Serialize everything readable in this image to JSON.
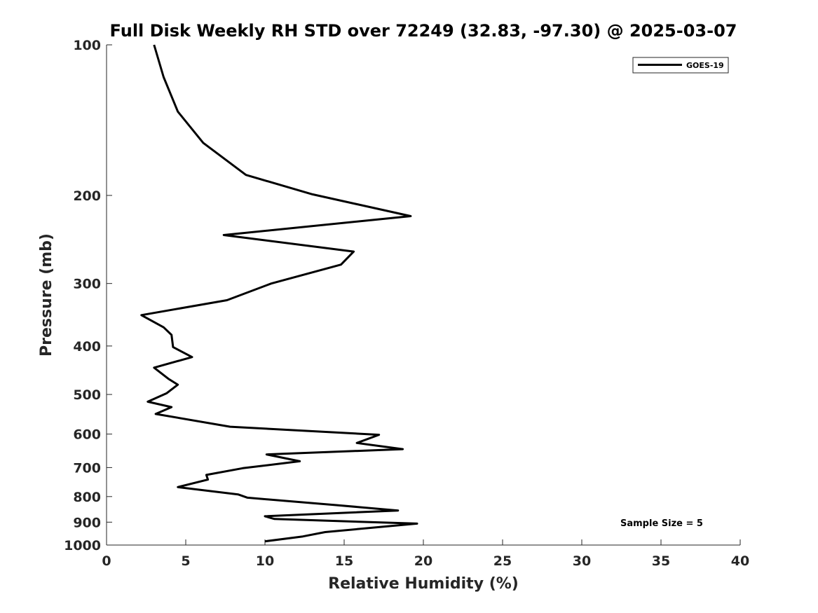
{
  "chart_data": {
    "type": "line",
    "title": "Full Disk Weekly RH STD over 72249 (32.83, -97.30) @ 2025-03-07",
    "xlabel": "Relative Humidity (%)",
    "ylabel": "Pressure (mb)",
    "xlim": [
      0,
      40
    ],
    "ylim": [
      100,
      1000
    ],
    "y_scale": "log",
    "y_reversed": true,
    "xticks": [
      0,
      5,
      10,
      15,
      20,
      25,
      30,
      35,
      40
    ],
    "yticks": [
      100,
      200,
      300,
      400,
      500,
      600,
      700,
      800,
      900,
      1000
    ],
    "legend_position": "top-right",
    "grid": false,
    "series": [
      {
        "name": "GOES-19",
        "color": "#000000",
        "points": [
          [
            3.0,
            100
          ],
          [
            3.6,
            116
          ],
          [
            4.5,
            136
          ],
          [
            6.1,
            157
          ],
          [
            8.8,
            182
          ],
          [
            13.0,
            199
          ],
          [
            19.2,
            220
          ],
          [
            7.4,
            240
          ],
          [
            15.6,
            259
          ],
          [
            14.8,
            275
          ],
          [
            10.4,
            300
          ],
          [
            7.6,
            324
          ],
          [
            2.2,
            347
          ],
          [
            3.6,
            367
          ],
          [
            4.1,
            380
          ],
          [
            4.2,
            402
          ],
          [
            5.4,
            421
          ],
          [
            3.0,
            442
          ],
          [
            3.9,
            465
          ],
          [
            4.5,
            478
          ],
          [
            3.8,
            497
          ],
          [
            2.6,
            517
          ],
          [
            4.1,
            530
          ],
          [
            3.1,
            547
          ],
          [
            7.8,
            580
          ],
          [
            17.2,
            602
          ],
          [
            15.8,
            625
          ],
          [
            18.7,
            643
          ],
          [
            10.1,
            659
          ],
          [
            12.2,
            680
          ],
          [
            8.6,
            702
          ],
          [
            6.3,
            724
          ],
          [
            6.4,
            740
          ],
          [
            4.5,
            766
          ],
          [
            8.3,
            792
          ],
          [
            8.9,
            804
          ],
          [
            14.5,
            832
          ],
          [
            18.4,
            853
          ],
          [
            10.0,
            876
          ],
          [
            10.6,
            887
          ],
          [
            19.6,
            906
          ],
          [
            13.8,
            942
          ],
          [
            12.4,
            961
          ],
          [
            10.0,
            983
          ]
        ]
      }
    ],
    "annotations": [
      "Sample Size = 5"
    ]
  }
}
